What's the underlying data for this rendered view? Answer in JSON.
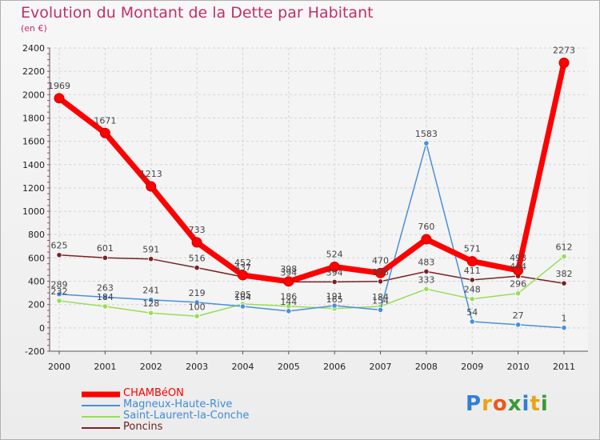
{
  "header": {
    "title": "Evolution du Montant de la Dette par Habitant",
    "subtitle": "(en €)"
  },
  "logo": {
    "text": "Proxiti",
    "letters": [
      "P",
      "r",
      "o",
      "x",
      "i",
      "t",
      "i"
    ],
    "colors": [
      "#2f7fd6",
      "#e8a416",
      "#e8591d",
      "#3a9a3a",
      "#2f7fd6",
      "#e8a416",
      "#3a9a3a"
    ]
  },
  "chart_data": {
    "type": "line",
    "title": "Evolution du Montant de la Dette par Habitant",
    "subtitle": "(en €)",
    "xlabel": "",
    "ylabel": "",
    "x": [
      "2000",
      "2001",
      "2002",
      "2003",
      "2004",
      "2005",
      "2006",
      "2007",
      "2008",
      "2009",
      "2010",
      "2011"
    ],
    "ylim": [
      -200,
      2400
    ],
    "yticks": [
      -200,
      0,
      200,
      400,
      600,
      800,
      1000,
      1200,
      1400,
      1600,
      1800,
      2000,
      2200,
      2400
    ],
    "grid": true,
    "legend": "bottom-left",
    "series": [
      {
        "name": "CHAMBéON",
        "color": "#ff0000",
        "values": [
          1969,
          1671,
          1213,
          733,
          452,
          398,
          524,
          470,
          760,
          571,
          493,
          2273
        ],
        "labels": [
          "1969",
          "1671",
          "1213",
          "733",
          "452",
          "398",
          "524",
          "470",
          "760",
          "571",
          "493",
          "2273"
        ]
      },
      {
        "name": "Magneux-Haute-Rive",
        "color": "#4a90d9",
        "values": [
          289,
          263,
          241,
          219,
          184,
          144,
          191,
          154,
          1583,
          54,
          27,
          1
        ],
        "labels": [
          "289",
          "263",
          "241",
          "219",
          "184",
          "144",
          "191",
          "154",
          "1583",
          "54",
          "27",
          "1"
        ]
      },
      {
        "name": "Saint-Laurent-la-Conche",
        "color": "#99dd55",
        "values": [
          232,
          184,
          128,
          100,
          205,
          186,
          165,
          184,
          333,
          248,
          296,
          612
        ],
        "labels": [
          "232",
          "184",
          "128",
          "100",
          "205",
          "186",
          "165",
          "184",
          "333",
          "248",
          "296",
          "612"
        ]
      },
      {
        "name": "Poncins",
        "color": "#7a2222",
        "values": [
          625,
          601,
          591,
          516,
          437,
          394,
          394,
          398,
          483,
          411,
          444,
          382
        ],
        "labels": [
          "625",
          "601",
          "591",
          "516",
          "437",
          "394",
          "394",
          "398",
          "483",
          "411",
          "444",
          "382"
        ]
      }
    ]
  }
}
